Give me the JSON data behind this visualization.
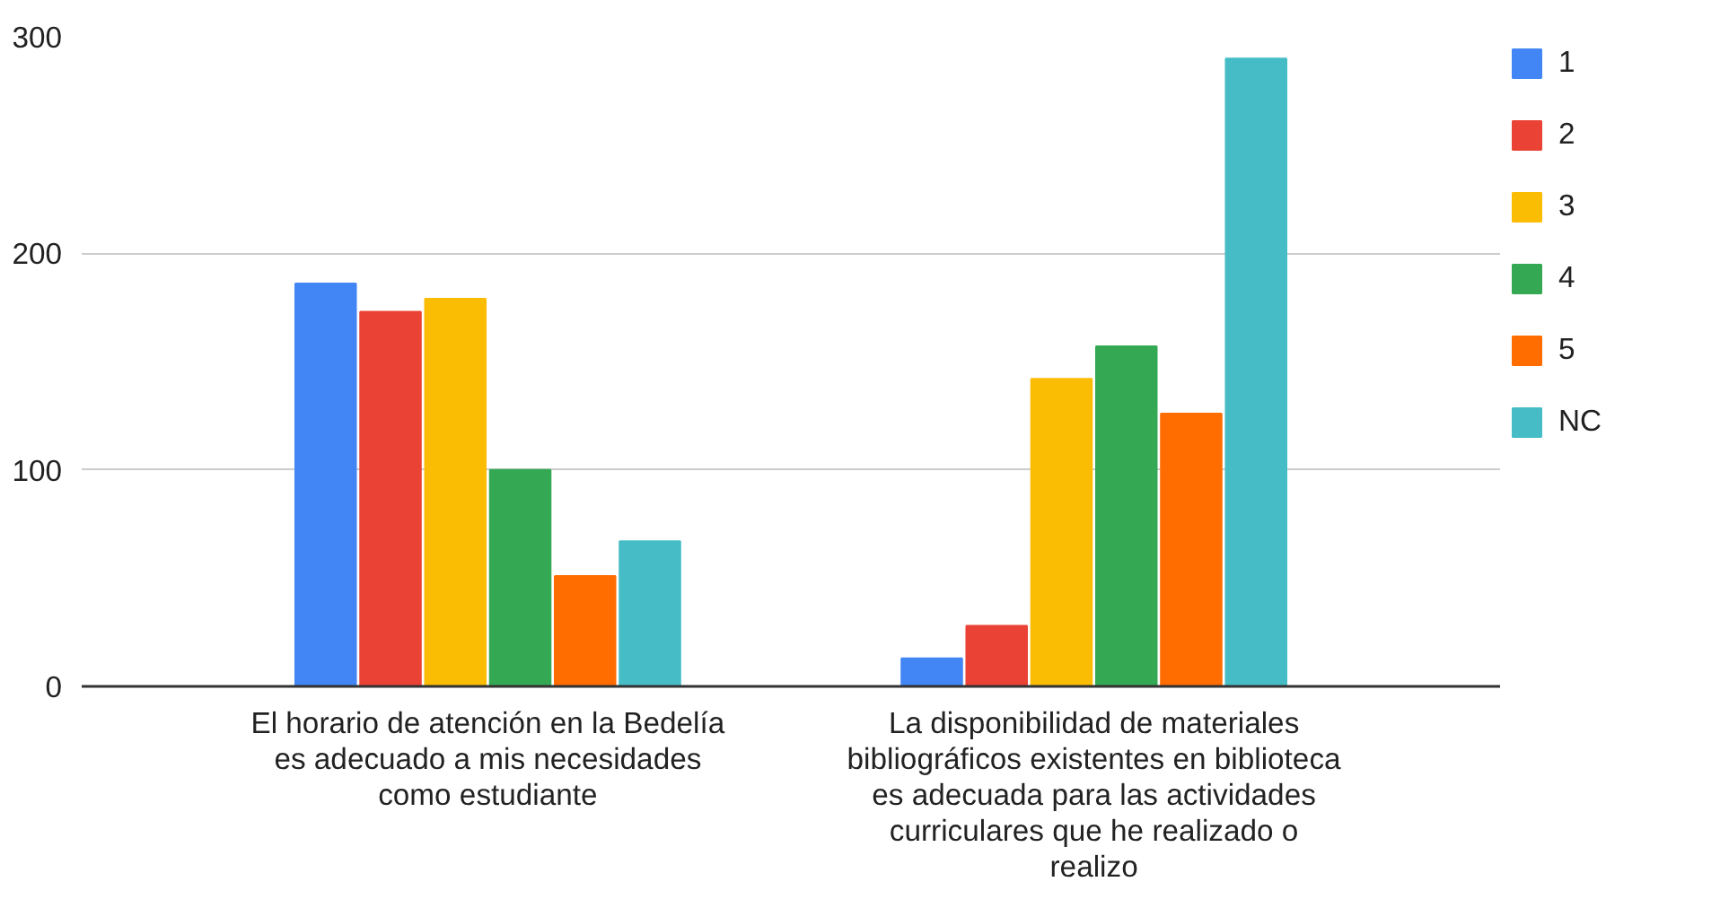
{
  "chart_data": {
    "type": "bar",
    "categories": [
      "El horario de atención en la Bedelía\nes adecuado a mis necesidades\ncomo estudiante",
      "La disponibilidad de materiales\nbibliográficos existentes en biblioteca\nes adecuada para las actividades\ncurriculares que he realizado o\nrealizo"
    ],
    "series": [
      {
        "name": "1",
        "color": "#4285f4",
        "values": [
          186,
          13
        ]
      },
      {
        "name": "2",
        "color": "#ea4335",
        "values": [
          173,
          28
        ]
      },
      {
        "name": "3",
        "color": "#fbbc04",
        "values": [
          179,
          142
        ]
      },
      {
        "name": "4",
        "color": "#34a853",
        "values": [
          100,
          157
        ]
      },
      {
        "name": "5",
        "color": "#ff6d01",
        "values": [
          51,
          126
        ]
      },
      {
        "name": "NC",
        "color": "#46bdc6",
        "values": [
          67,
          290
        ]
      }
    ],
    "ylim": [
      0,
      300
    ],
    "yticks": [
      0,
      100,
      200,
      300
    ],
    "grid": "y",
    "legend": "top right"
  }
}
